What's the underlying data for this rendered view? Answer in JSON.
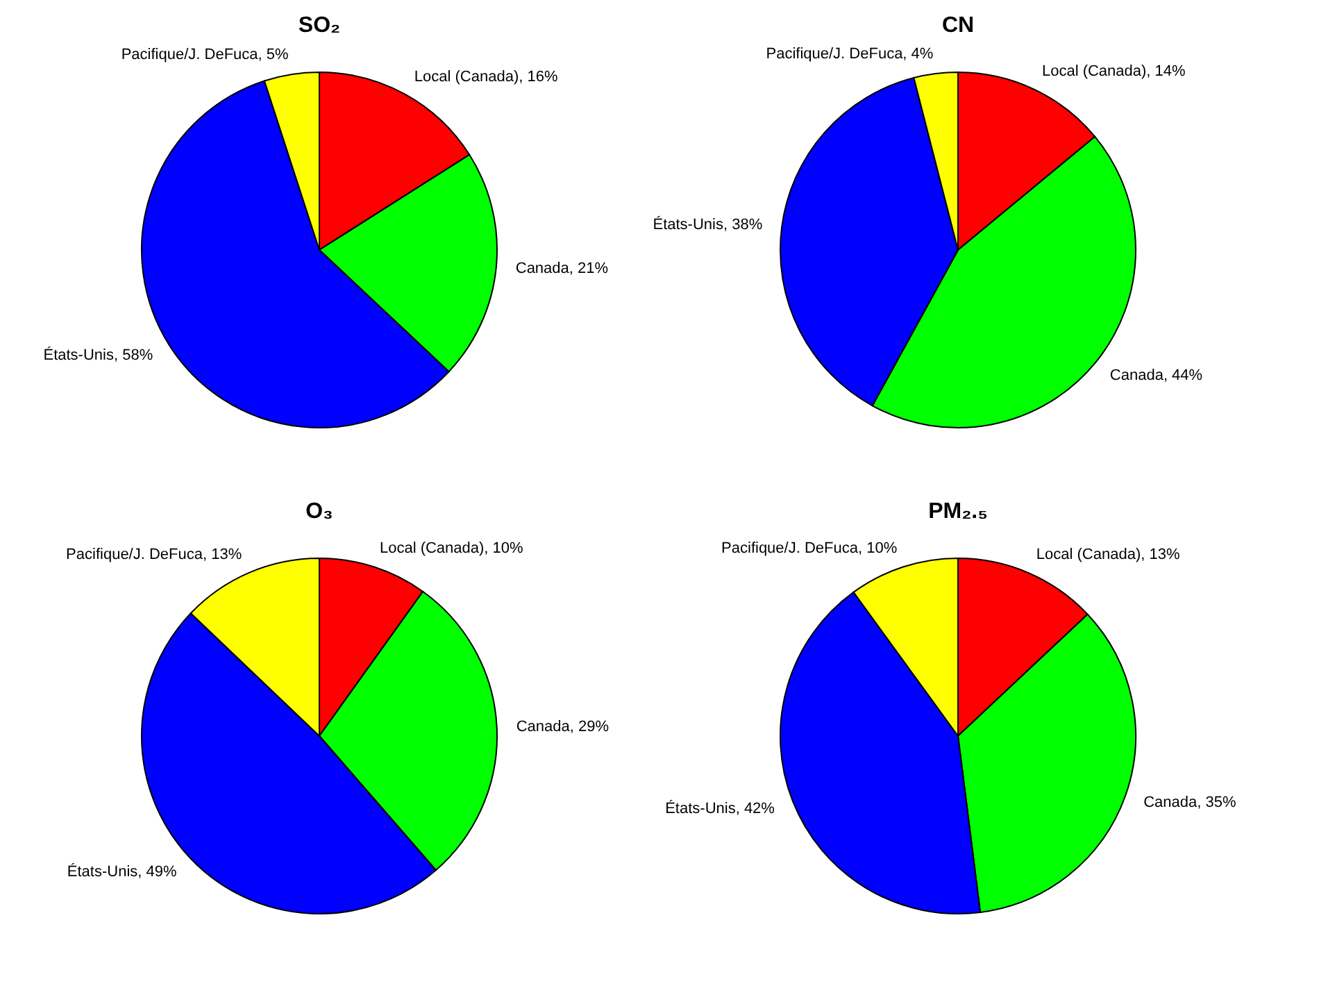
{
  "chart_data": [
    {
      "type": "pie",
      "title": "SO₂",
      "categories": [
        "Local (Canada)",
        "Canada",
        "États-Unis",
        "Pacifique/J. DeFuca"
      ],
      "values": [
        16,
        21,
        58,
        5
      ],
      "value_labels": [
        "16%",
        "21%",
        "58%",
        "5%"
      ],
      "colors": [
        "#ff0000",
        "#00ff00",
        "#0000ff",
        "#ffff00"
      ],
      "legend": false
    },
    {
      "type": "pie",
      "title": "CN",
      "categories": [
        "Local (Canada)",
        "Canada",
        "États-Unis",
        "Pacifique/J. DeFuca"
      ],
      "values": [
        14,
        44,
        38,
        4
      ],
      "value_labels": [
        "14%",
        "44%",
        "38%",
        "4%"
      ],
      "colors": [
        "#ff0000",
        "#00ff00",
        "#0000ff",
        "#ffff00"
      ],
      "legend": false
    },
    {
      "type": "pie",
      "title": "O₃",
      "categories": [
        "Local (Canada)",
        "Canada",
        "États-Unis",
        "Pacifique/J. DeFuca"
      ],
      "values": [
        10,
        29,
        49,
        13
      ],
      "value_labels": [
        "10%",
        "29%",
        "49%",
        "13%"
      ],
      "colors": [
        "#ff0000",
        "#00ff00",
        "#0000ff",
        "#ffff00"
      ],
      "legend": false
    },
    {
      "type": "pie",
      "title": "PM₂.₅",
      "categories": [
        "Local (Canada)",
        "Canada",
        "États-Unis",
        "Pacifique/J. DeFuca"
      ],
      "values": [
        13,
        35,
        42,
        10
      ],
      "value_labels": [
        "13%",
        "35%",
        "42%",
        "10%"
      ],
      "colors": [
        "#ff0000",
        "#00ff00",
        "#0000ff",
        "#ffff00"
      ],
      "legend": false
    }
  ]
}
